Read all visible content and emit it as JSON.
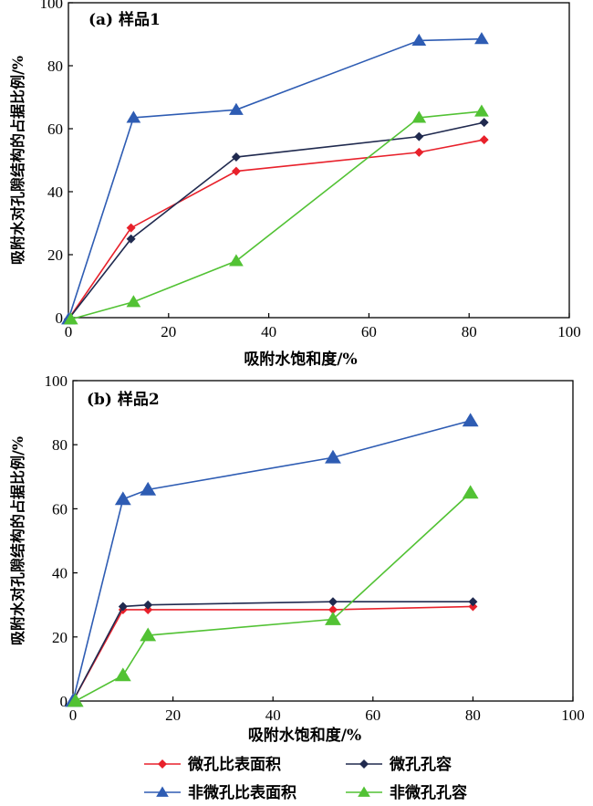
{
  "chart_data": [
    {
      "type": "line",
      "title": "(a) 样品1",
      "xlabel": "吸附水饱和度/%",
      "ylabel": "吸附水对孔隙结构的占据比例/%",
      "xlim": [
        0,
        100
      ],
      "ylim": [
        0,
        100
      ],
      "xticks": [
        "0",
        "20",
        "40",
        "60",
        "80",
        "100"
      ],
      "yticks": [
        "0",
        "20",
        "40",
        "60",
        "80",
        "100"
      ],
      "grid": false,
      "series": [
        {
          "name": "微孔比表面积",
          "color": "#e8212b",
          "marker": "diamond",
          "points": [
            [
              0,
              -0.5
            ],
            [
              12.5,
              28.5
            ],
            [
              33.5,
              46.5
            ],
            [
              70,
              52.5
            ],
            [
              83,
              56.5
            ]
          ]
        },
        {
          "name": "微孔孔容",
          "color": "#202a4f",
          "marker": "diamond",
          "points": [
            [
              0,
              -0.5
            ],
            [
              12.5,
              25
            ],
            [
              33.5,
              51
            ],
            [
              70,
              57.5
            ],
            [
              83,
              62
            ]
          ]
        },
        {
          "name": "非微孔比表面积",
          "color": "#2e5cb3",
          "marker": "triangle",
          "points": [
            [
              0,
              -0.5
            ],
            [
              13,
              63.5
            ],
            [
              33.5,
              66
            ],
            [
              70,
              88
            ],
            [
              82.5,
              88.5
            ]
          ]
        },
        {
          "name": "非微孔孔容",
          "color": "#52c234",
          "marker": "triangle",
          "points": [
            [
              0.5,
              -0.5
            ],
            [
              13,
              5
            ],
            [
              33.5,
              18
            ],
            [
              70,
              63.5
            ],
            [
              82.5,
              65.5
            ]
          ]
        }
      ]
    },
    {
      "type": "line",
      "title": "(b) 样品2",
      "xlabel": "吸附水饱和度/%",
      "ylabel": "吸附水对孔隙结构的占据比例/%",
      "xlim": [
        0,
        100
      ],
      "ylim": [
        0,
        100
      ],
      "xticks": [
        "0",
        "20",
        "40",
        "60",
        "80",
        "100"
      ],
      "yticks": [
        "0",
        "20",
        "40",
        "60",
        "80",
        "100"
      ],
      "grid": false,
      "series": [
        {
          "name": "微孔比表面积",
          "color": "#e8212b",
          "marker": "diamond",
          "points": [
            [
              0,
              0
            ],
            [
              10,
              28.5
            ],
            [
              15,
              28.5
            ],
            [
              52,
              28.5
            ],
            [
              80,
              29.5
            ]
          ]
        },
        {
          "name": "微孔孔容",
          "color": "#202a4f",
          "marker": "diamond",
          "points": [
            [
              0,
              0
            ],
            [
              10,
              29.5
            ],
            [
              15,
              30
            ],
            [
              52,
              31
            ],
            [
              80,
              31
            ]
          ]
        },
        {
          "name": "非微孔比表面积",
          "color": "#2e5cb3",
          "marker": "triangle",
          "points": [
            [
              0,
              0
            ],
            [
              10,
              63
            ],
            [
              15,
              66
            ],
            [
              52,
              76
            ],
            [
              79.5,
              87.5
            ]
          ]
        },
        {
          "name": "非微孔孔容",
          "color": "#52c234",
          "marker": "triangle",
          "points": [
            [
              0.5,
              0
            ],
            [
              10,
              8
            ],
            [
              15,
              20.5
            ],
            [
              52,
              25.5
            ],
            [
              79.5,
              65
            ]
          ]
        }
      ]
    }
  ],
  "legend": {
    "placement": "bottom",
    "items": [
      {
        "label": "微孔比表面积",
        "color": "#e8212b",
        "marker": "diamond"
      },
      {
        "label": "微孔孔容",
        "color": "#202a4f",
        "marker": "diamond"
      },
      {
        "label": "非微孔比表面积",
        "color": "#2e5cb3",
        "marker": "triangle"
      },
      {
        "label": "非微孔孔容",
        "color": "#52c234",
        "marker": "triangle"
      }
    ]
  }
}
